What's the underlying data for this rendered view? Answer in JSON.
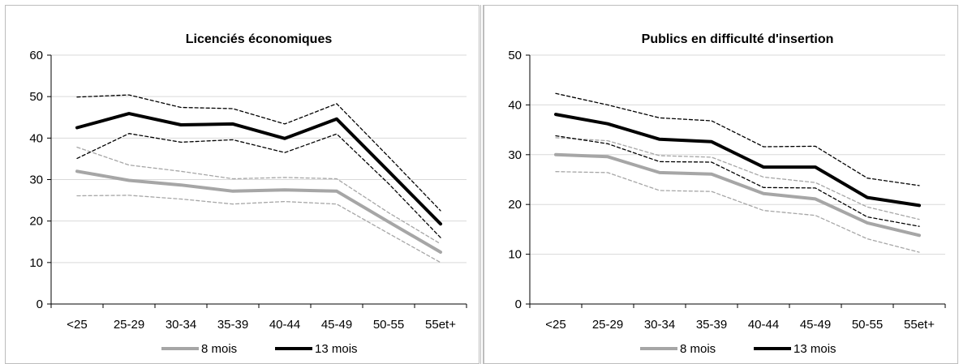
{
  "chart_data": [
    {
      "type": "line",
      "title": "Licenciés économiques",
      "categories": [
        "<25",
        "25-29",
        "30-34",
        "35-39",
        "40-44",
        "45-49",
        "50-55",
        "55et+"
      ],
      "ylim": [
        0,
        60
      ],
      "yticks": [
        0,
        10,
        20,
        30,
        40,
        50,
        60
      ],
      "grid": true,
      "legend_position": "bottom",
      "legend": [
        "8 mois",
        "13 mois"
      ],
      "series": [
        {
          "name": "8 mois",
          "role": "main",
          "color": "#a6a6a6",
          "values": [
            32.0,
            29.8,
            28.7,
            27.2,
            27.5,
            27.2,
            19.8,
            12.5
          ]
        },
        {
          "role": "upper",
          "color": "#a6a6a6",
          "values": [
            37.8,
            33.5,
            32.0,
            30.2,
            30.5,
            30.2,
            22.0,
            14.5
          ]
        },
        {
          "role": "lower",
          "color": "#a6a6a6",
          "values": [
            26.1,
            26.2,
            25.3,
            24.1,
            24.7,
            24.1,
            17.0,
            10.0
          ]
        },
        {
          "name": "13 mois",
          "role": "main",
          "color": "#000000",
          "values": [
            42.5,
            45.9,
            43.2,
            43.4,
            39.9,
            44.6,
            32.0,
            19.3
          ]
        },
        {
          "role": "upper",
          "color": "#000000",
          "values": [
            49.9,
            50.4,
            47.4,
            47.1,
            43.4,
            48.3,
            35.5,
            22.5
          ]
        },
        {
          "role": "lower",
          "color": "#000000",
          "values": [
            35.1,
            41.1,
            39.0,
            39.6,
            36.5,
            41.0,
            29.0,
            16.0
          ]
        }
      ]
    },
    {
      "type": "line",
      "title": "Publics en difficulté d'insertion",
      "categories": [
        "<25",
        "25-29",
        "30-34",
        "35-39",
        "40-44",
        "45-49",
        "50-55",
        "55et+"
      ],
      "ylim": [
        0,
        50
      ],
      "yticks": [
        0,
        10,
        20,
        30,
        40,
        50
      ],
      "grid": true,
      "legend_position": "bottom",
      "legend": [
        "8 mois",
        "13 mois"
      ],
      "series": [
        {
          "name": "8 mois",
          "role": "main",
          "color": "#a6a6a6",
          "values": [
            30.0,
            29.6,
            26.4,
            26.1,
            22.2,
            21.1,
            16.3,
            13.8
          ]
        },
        {
          "role": "upper",
          "color": "#a6a6a6",
          "values": [
            33.4,
            32.8,
            29.8,
            29.5,
            25.5,
            24.4,
            19.5,
            17.0
          ]
        },
        {
          "role": "lower",
          "color": "#a6a6a6",
          "values": [
            26.6,
            26.4,
            22.8,
            22.6,
            18.8,
            17.8,
            13.1,
            10.4
          ]
        },
        {
          "name": "13 mois",
          "role": "main",
          "color": "#000000",
          "values": [
            38.1,
            36.2,
            33.1,
            32.6,
            27.5,
            27.5,
            21.4,
            19.8
          ]
        },
        {
          "role": "upper",
          "color": "#000000",
          "values": [
            42.3,
            40.0,
            37.4,
            36.8,
            31.6,
            31.7,
            25.3,
            23.8
          ]
        },
        {
          "role": "lower",
          "color": "#000000",
          "values": [
            33.8,
            32.2,
            28.6,
            28.5,
            23.4,
            23.3,
            17.5,
            15.6
          ]
        }
      ]
    }
  ]
}
